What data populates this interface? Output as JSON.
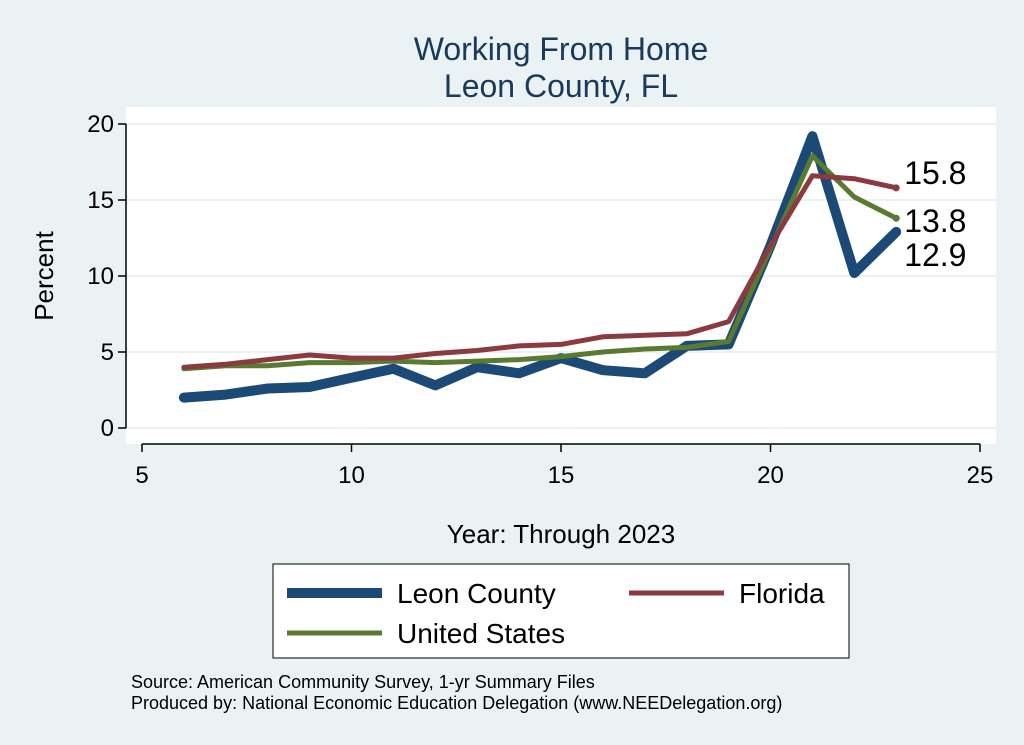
{
  "chart_data": {
    "type": "line",
    "title": "Working From Home",
    "subtitle": "Leon County, FL",
    "xlabel": "Year: Through 2023",
    "ylabel": "Percent",
    "xlim": [
      5,
      25
    ],
    "ylim": [
      0,
      20
    ],
    "xticks": [
      5,
      10,
      15,
      20,
      25
    ],
    "yticks": [
      0,
      5,
      10,
      15,
      20
    ],
    "grid": true,
    "legend_position": "bottom",
    "series": [
      {
        "name": "Leon County",
        "color": "#1a4a75",
        "weight": "thick",
        "x": [
          6,
          7,
          8,
          9,
          10,
          11,
          12,
          13,
          14,
          15,
          16,
          17,
          18,
          19,
          20,
          21,
          22,
          23
        ],
        "values": [
          2.0,
          2.2,
          2.6,
          2.7,
          3.3,
          3.9,
          2.8,
          4.0,
          3.6,
          4.6,
          3.8,
          3.6,
          5.4,
          5.5,
          12.0,
          19.2,
          10.2,
          12.9
        ],
        "end_label": "12.9"
      },
      {
        "name": "Florida",
        "color": "#8b3a3f",
        "weight": "medium",
        "x": [
          6,
          7,
          8,
          9,
          10,
          11,
          12,
          13,
          14,
          15,
          16,
          17,
          18,
          19,
          20,
          21,
          22,
          23
        ],
        "values": [
          4.0,
          4.2,
          4.5,
          4.8,
          4.6,
          4.6,
          4.9,
          5.1,
          5.4,
          5.5,
          6.0,
          6.1,
          6.2,
          7.0,
          12.0,
          16.6,
          16.4,
          15.8
        ],
        "end_label": "15.8"
      },
      {
        "name": "United States",
        "color": "#5a7a32",
        "weight": "medium",
        "x": [
          6,
          7,
          8,
          9,
          10,
          11,
          12,
          13,
          14,
          15,
          16,
          17,
          18,
          19,
          20,
          21,
          22,
          23
        ],
        "values": [
          3.9,
          4.1,
          4.1,
          4.3,
          4.3,
          4.4,
          4.3,
          4.4,
          4.5,
          4.7,
          5.0,
          5.2,
          5.3,
          5.7,
          11.8,
          17.9,
          15.2,
          13.8
        ],
        "end_label": "13.8"
      }
    ],
    "source_lines": [
      "Source: American Community Survey, 1-yr Summary Files",
      "Produced by: National Economic Education Delegation (www.NEEDelegation.org)"
    ]
  }
}
